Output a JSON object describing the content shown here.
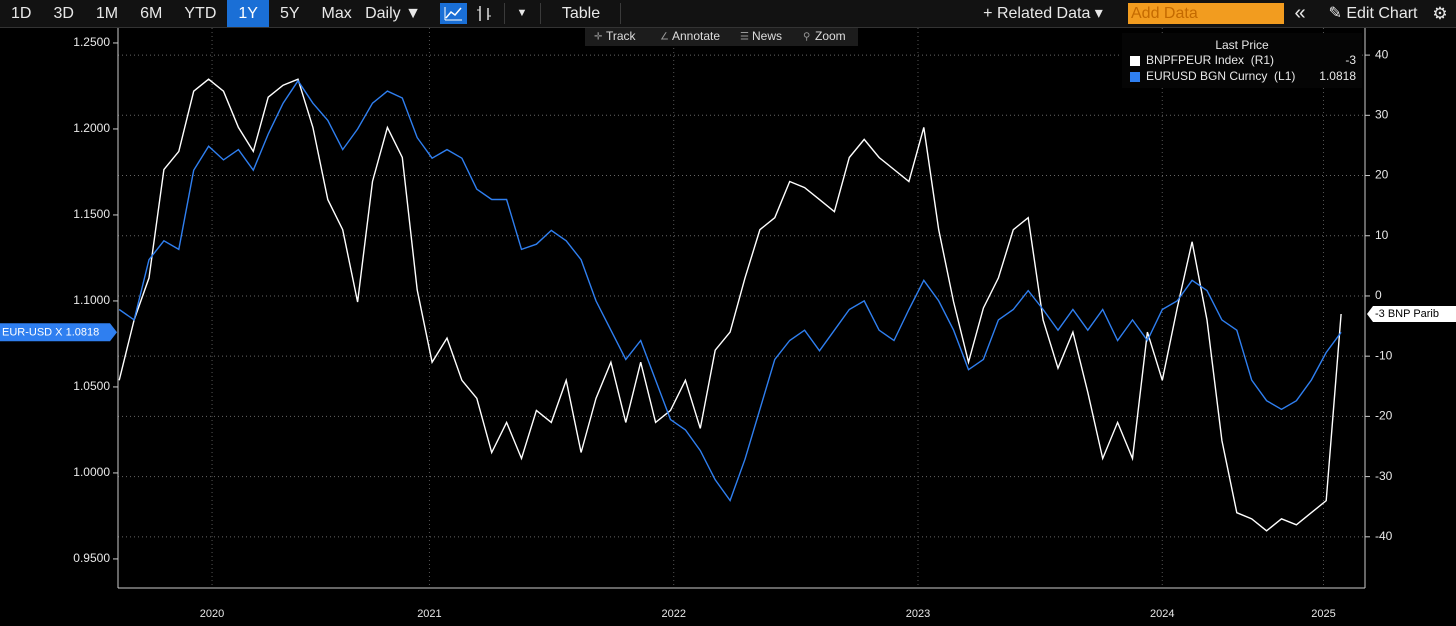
{
  "toolbar": {
    "ranges": [
      {
        "label": "1D"
      },
      {
        "label": "3D"
      },
      {
        "label": "1M"
      },
      {
        "label": "6M"
      },
      {
        "label": "YTD"
      },
      {
        "label": "1Y",
        "active": true
      },
      {
        "label": "5Y"
      },
      {
        "label": "Max"
      }
    ],
    "frequency": "Daily ▼",
    "table_button": "Table",
    "related_data": "+ Related Data ▾",
    "add_data_placeholder": "Add Data",
    "collapse": "«",
    "edit_chart": "Edit Chart"
  },
  "chart_tools": [
    "Track",
    "Annotate",
    "News",
    "Zoom"
  ],
  "chart_data": {
    "type": "line",
    "legend_title": "Last Price",
    "grid": true,
    "x": [
      2020.23,
      2020.291,
      2020.352,
      2020.413,
      2020.474,
      2020.535,
      2020.596,
      2020.657,
      2020.718,
      2020.779,
      2020.84,
      2020.901,
      2020.962,
      2021.023,
      2021.084,
      2021.145,
      2021.206,
      2021.267,
      2021.328,
      2021.389,
      2021.45,
      2021.511,
      2021.572,
      2021.633,
      2021.694,
      2021.755,
      2021.816,
      2021.877,
      2021.938,
      2021.999,
      2022.06,
      2022.121,
      2022.182,
      2022.243,
      2022.304,
      2022.365,
      2022.426,
      2022.487,
      2022.548,
      2022.609,
      2022.67,
      2022.731,
      2022.792,
      2022.853,
      2022.914,
      2022.975,
      2023.036,
      2023.097,
      2023.158,
      2023.219,
      2023.28,
      2023.341,
      2023.402,
      2023.463,
      2023.524,
      2023.585,
      2023.646,
      2023.707,
      2023.768,
      2023.829,
      2023.89,
      2023.951,
      2024.012,
      2024.073,
      2024.134,
      2024.195,
      2024.256,
      2024.317,
      2024.378,
      2024.439,
      2024.5,
      2024.561,
      2024.622,
      2024.683,
      2024.744,
      2024.805,
      2024.866,
      2024.927,
      2024.988,
      2025.049,
      2025.11,
      2025.171,
      2025.232
    ],
    "xlim": [
      2020.225,
      2025.33
    ],
    "xticks": [
      {
        "value": 2020.61,
        "label": "2020"
      },
      {
        "value": 2021.5,
        "label": "2021"
      },
      {
        "value": 2022.5,
        "label": "2022"
      },
      {
        "value": 2023.5,
        "label": "2023"
      },
      {
        "value": 2024.5,
        "label": "2024"
      },
      {
        "value": 2025.16,
        "label": "2025"
      }
    ],
    "ylim": [
      0.9331,
      1.2587
    ],
    "yticks": [
      {
        "value": 0.95,
        "label": "0.9500"
      },
      {
        "value": 1.0,
        "label": "1.0000"
      },
      {
        "value": 1.05,
        "label": "1.0500"
      },
      {
        "value": 1.1,
        "label": "1.1000"
      },
      {
        "value": 1.15,
        "label": "1.1500"
      },
      {
        "value": 1.2,
        "label": "1.2000"
      },
      {
        "value": 1.25,
        "label": "1.2500"
      }
    ],
    "y2lim": [
      -48.5,
      44.5
    ],
    "y2ticks": [
      -40,
      -30,
      -20,
      -10,
      0,
      10,
      20,
      30,
      40
    ],
    "series": [
      {
        "name": "BNPFPEUR Index  (R1)",
        "tag": "BNP Parib",
        "color": "#ffffff",
        "axis": "y2",
        "values": [
          -14,
          -4,
          3,
          21,
          24,
          34,
          36,
          34,
          28,
          24,
          33,
          35,
          36,
          28,
          16,
          11,
          -1,
          19,
          28,
          23,
          1,
          -11,
          -7,
          -14,
          -17,
          -26,
          -21,
          -27,
          -19,
          -21,
          -14,
          -26,
          -17,
          -11,
          -21,
          -11,
          -21,
          -19,
          -14,
          -22,
          -9,
          -6,
          3,
          11,
          13,
          19,
          18,
          16,
          14,
          23,
          26,
          23,
          21,
          19,
          28,
          11,
          -1,
          -11,
          -2,
          3,
          11,
          13,
          -4,
          -12,
          -6,
          -16,
          -27,
          -21,
          -27,
          -6,
          -14,
          -2,
          9,
          -4,
          -24,
          -36,
          -37,
          -39,
          -37,
          -38,
          -36,
          -34,
          -3
        ]
      },
      {
        "name": "EURUSD BGN Curncy  (L1)",
        "tag": "EUR-USD X",
        "color": "#2f7ff0",
        "axis": "y",
        "values": [
          1.095,
          1.089,
          1.124,
          1.135,
          1.13,
          1.176,
          1.19,
          1.182,
          1.188,
          1.176,
          1.197,
          1.215,
          1.228,
          1.215,
          1.205,
          1.188,
          1.2,
          1.215,
          1.222,
          1.218,
          1.195,
          1.183,
          1.188,
          1.183,
          1.165,
          1.159,
          1.159,
          1.13,
          1.133,
          1.141,
          1.135,
          1.124,
          1.1,
          1.083,
          1.066,
          1.077,
          1.054,
          1.031,
          1.025,
          1.013,
          0.996,
          0.984,
          1.008,
          1.037,
          1.066,
          1.077,
          1.083,
          1.071,
          1.083,
          1.095,
          1.1,
          1.083,
          1.077,
          1.095,
          1.112,
          1.1,
          1.083,
          1.06,
          1.066,
          1.089,
          1.095,
          1.106,
          1.095,
          1.083,
          1.095,
          1.083,
          1.095,
          1.077,
          1.089,
          1.077,
          1.095,
          1.1,
          1.112,
          1.106,
          1.089,
          1.083,
          1.054,
          1.042,
          1.037,
          1.042,
          1.054,
          1.07,
          1.0818
        ]
      }
    ]
  }
}
